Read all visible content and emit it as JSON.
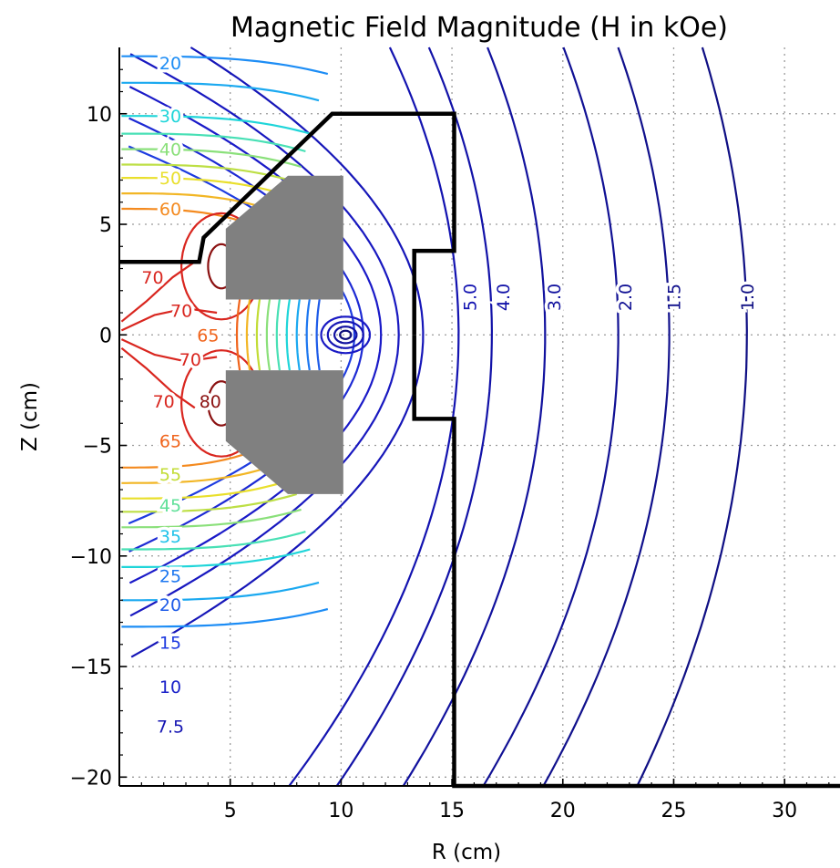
{
  "chart_data": {
    "type": "contour",
    "title": "Magnetic Field Magnitude (H in kOe)",
    "xlabel": "R (cm)",
    "ylabel": "Z (cm)",
    "xlim": [
      0,
      32.5
    ],
    "ylim": [
      -20.4,
      13
    ],
    "xticks": [
      {
        "value": 5,
        "label": "5"
      },
      {
        "value": 10,
        "label": "10"
      },
      {
        "value": 15,
        "label": "15"
      },
      {
        "value": 20,
        "label": "20"
      },
      {
        "value": 25,
        "label": "25"
      },
      {
        "value": 30,
        "label": "30"
      }
    ],
    "yticks": [
      {
        "value": 10,
        "label": "10"
      },
      {
        "value": 5,
        "label": "5"
      },
      {
        "value": 0,
        "label": "0"
      },
      {
        "value": -5,
        "label": "−5"
      },
      {
        "value": -10,
        "label": "−10"
      },
      {
        "value": -15,
        "label": "−15"
      },
      {
        "value": -20,
        "label": "−20"
      }
    ],
    "grid": true,
    "colormap": "jet",
    "contour_labels": [
      {
        "text": "20",
        "r": 2.3,
        "z": 12.3,
        "color": "#1d8df5"
      },
      {
        "text": "30",
        "r": 2.3,
        "z": 9.9,
        "color": "#1fd5d9"
      },
      {
        "text": "40",
        "r": 2.3,
        "z": 8.4,
        "color": "#8ae07a"
      },
      {
        "text": "50",
        "r": 2.3,
        "z": 7.1,
        "color": "#e9df2b"
      },
      {
        "text": "60",
        "r": 2.3,
        "z": 5.7,
        "color": "#f48a1f"
      },
      {
        "text": "70",
        "r": 1.5,
        "z": 2.6,
        "color": "#d9261f"
      },
      {
        "text": "70",
        "r": 2.8,
        "z": 1.1,
        "color": "#d9261f"
      },
      {
        "text": "65",
        "r": 4.0,
        "z": 0.0,
        "color": "#f0641c"
      },
      {
        "text": "70",
        "r": 3.2,
        "z": -1.1,
        "color": "#d9261f"
      },
      {
        "text": "70",
        "r": 2.0,
        "z": -3.0,
        "color": "#d9261f"
      },
      {
        "text": "80",
        "r": 4.1,
        "z": -3.0,
        "color": "#8b1111"
      },
      {
        "text": "65",
        "r": 2.3,
        "z": -4.8,
        "color": "#f0641c"
      },
      {
        "text": "55",
        "r": 2.3,
        "z": -6.3,
        "color": "#c2dc35"
      },
      {
        "text": "45",
        "r": 2.3,
        "z": -7.7,
        "color": "#5fe098"
      },
      {
        "text": "35",
        "r": 2.3,
        "z": -9.1,
        "color": "#1fc2e9"
      },
      {
        "text": "25",
        "r": 2.3,
        "z": -10.9,
        "color": "#1d77f0"
      },
      {
        "text": "20",
        "r": 2.3,
        "z": -12.2,
        "color": "#1d5be8"
      },
      {
        "text": "15",
        "r": 2.3,
        "z": -13.9,
        "color": "#1f3be0"
      },
      {
        "text": "10",
        "r": 2.3,
        "z": -15.9,
        "color": "#1b22c9"
      },
      {
        "text": "7.5",
        "r": 2.3,
        "z": -17.7,
        "color": "#1414b2"
      },
      {
        "text": "5.0",
        "r": 15.8,
        "z": 1.7,
        "color": "#1212b0"
      },
      {
        "text": "4.0",
        "r": 17.3,
        "z": 1.7,
        "color": "#1212a8"
      },
      {
        "text": "3.0",
        "r": 19.6,
        "z": 1.7,
        "color": "#11119e"
      },
      {
        "text": "2.0",
        "r": 22.8,
        "z": 1.7,
        "color": "#101094"
      },
      {
        "text": "1.5",
        "r": 25.0,
        "z": 1.7,
        "color": "#10108c"
      },
      {
        "text": "1.0",
        "r": 28.3,
        "z": 1.7,
        "color": "#0f0f84"
      }
    ],
    "magnet_pieces": [
      [
        [
          4.8,
          4.8
        ],
        [
          7.6,
          7.2
        ],
        [
          10.1,
          7.2
        ],
        [
          10.1,
          1.6
        ],
        [
          4.8,
          1.6
        ]
      ],
      [
        [
          4.8,
          -1.6
        ],
        [
          10.1,
          -1.6
        ],
        [
          10.1,
          -7.2
        ],
        [
          7.6,
          -7.2
        ],
        [
          4.8,
          -4.8
        ]
      ]
    ],
    "boundary_upper": [
      [
        0,
        3.3
      ],
      [
        3.6,
        3.3
      ],
      [
        3.8,
        4.4
      ],
      [
        9.6,
        10.0
      ],
      [
        15.1,
        10.0
      ],
      [
        15.1,
        3.8
      ],
      [
        13.3,
        3.8
      ],
      [
        13.3,
        0
      ]
    ],
    "boundary_lower": [
      [
        13.3,
        0
      ],
      [
        13.3,
        -3.8
      ],
      [
        15.1,
        -3.8
      ],
      [
        15.1,
        -20.4
      ],
      [
        32.5,
        -20.4
      ]
    ],
    "gap_center": [
      10.2,
      0.0
    ],
    "colors": {
      "magnet": "#808080",
      "boundary": "#000000",
      "grid": "#9a9a9a"
    }
  }
}
